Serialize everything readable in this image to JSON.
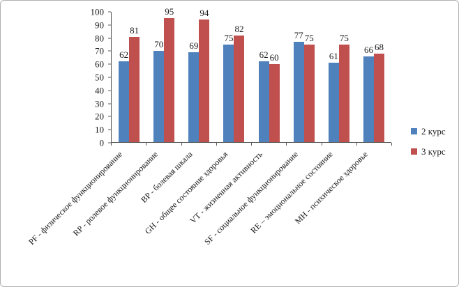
{
  "legend": {
    "items": [
      {
        "label": "2 курс",
        "color": "#4F81BD"
      },
      {
        "label": "3 курс",
        "color": "#C0504D"
      }
    ]
  },
  "chart_data": {
    "type": "bar",
    "title": "",
    "xlabel": "",
    "ylabel": "",
    "categories": [
      "PF - физическое функционирование",
      "RP - ролевое функционирование",
      "BP - болевая шкала",
      "GH - общее состояние здоровья",
      "VT - жизненная активность",
      "SF - социальное функционирование",
      "RE – эмоциональное состояние",
      "MH - психическое здоровье"
    ],
    "series": [
      {
        "name": "2 курс",
        "color": "#4F81BD",
        "values": [
          62,
          70,
          69,
          75,
          62,
          77,
          61,
          66
        ]
      },
      {
        "name": "3 курс",
        "color": "#C0504D",
        "values": [
          81,
          95,
          94,
          82,
          60,
          75,
          75,
          68
        ]
      }
    ],
    "ylim": [
      0,
      100
    ],
    "ytick_step": 10,
    "grid": false,
    "value_labels": true,
    "legend_position": "right"
  }
}
